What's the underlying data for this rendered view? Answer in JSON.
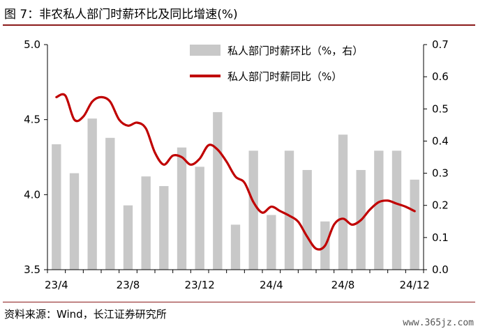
{
  "figure": {
    "title": "图 7：非农私人部门时薪环比及同比增速(%)",
    "source": "资料来源：Wind，长江证券研究所",
    "watermark": "www.365jz.com"
  },
  "chart_data": {
    "type": "bar+line",
    "colors": {
      "bar": "#c8c8c8",
      "line": "#c00000",
      "rule": "#8b1a1a"
    },
    "legend": {
      "placement": "top-right",
      "bar_label": "私人部门时薪环比（%，右）",
      "line_label": "私人部门时薪同比（%）"
    },
    "x_tick_labels": [
      "23/4",
      "23/8",
      "23/12",
      "24/4",
      "24/8",
      "24/12"
    ],
    "x_tick_every": 4,
    "months": [
      "23/4",
      "23/5",
      "23/6",
      "23/7",
      "23/8",
      "23/9",
      "23/10",
      "23/11",
      "23/12",
      "24/1",
      "24/2",
      "24/3",
      "24/4",
      "24/5",
      "24/6",
      "24/7",
      "24/8",
      "24/9",
      "24/10",
      "24/11",
      "24/12"
    ],
    "left_axis": {
      "ylim": [
        3.5,
        5.0
      ],
      "ticks": [
        "3.5",
        "4.0",
        "4.5",
        "5.0"
      ],
      "tick_values": [
        3.5,
        4.0,
        4.5,
        5.0
      ]
    },
    "right_axis": {
      "ylim": [
        0.0,
        0.7
      ],
      "ticks": [
        "0.0",
        "0.1",
        "0.2",
        "0.3",
        "0.4",
        "0.5",
        "0.6",
        "0.7"
      ],
      "tick_values": [
        0.0,
        0.1,
        0.2,
        0.3,
        0.4,
        0.5,
        0.6,
        0.7
      ]
    },
    "series": [
      {
        "name": "私人部门时薪环比（%，右）",
        "type": "bar",
        "axis": "right",
        "values": [
          0.39,
          0.3,
          0.47,
          0.41,
          0.2,
          0.29,
          0.26,
          0.38,
          0.32,
          0.49,
          0.14,
          0.37,
          0.17,
          0.37,
          0.31,
          0.15,
          0.42,
          0.31,
          0.37,
          0.37,
          0.28
        ]
      },
      {
        "name": "私人部门时薪同比（%）",
        "type": "line",
        "axis": "left",
        "x": [
          0,
          0.5,
          1,
          1.5,
          2,
          2.5,
          3,
          3.5,
          4,
          4.5,
          5,
          5.5,
          6,
          6.5,
          7,
          7.5,
          8,
          8.5,
          9,
          9.5,
          10,
          10.5,
          11,
          11.5,
          12,
          12.5,
          13,
          13.5,
          14,
          14.5,
          15,
          15.5,
          16,
          16.5,
          17,
          17.5,
          18,
          18.5,
          19,
          19.5,
          20
        ],
        "values": [
          4.65,
          4.66,
          4.5,
          4.52,
          4.62,
          4.65,
          4.62,
          4.5,
          4.46,
          4.48,
          4.44,
          4.28,
          4.2,
          4.26,
          4.25,
          4.2,
          4.24,
          4.33,
          4.3,
          4.22,
          4.12,
          4.08,
          3.95,
          3.88,
          3.92,
          3.89,
          3.86,
          3.82,
          3.72,
          3.64,
          3.66,
          3.8,
          3.84,
          3.8,
          3.83,
          3.9,
          3.95,
          3.96,
          3.94,
          3.92,
          3.89
        ]
      }
    ]
  }
}
